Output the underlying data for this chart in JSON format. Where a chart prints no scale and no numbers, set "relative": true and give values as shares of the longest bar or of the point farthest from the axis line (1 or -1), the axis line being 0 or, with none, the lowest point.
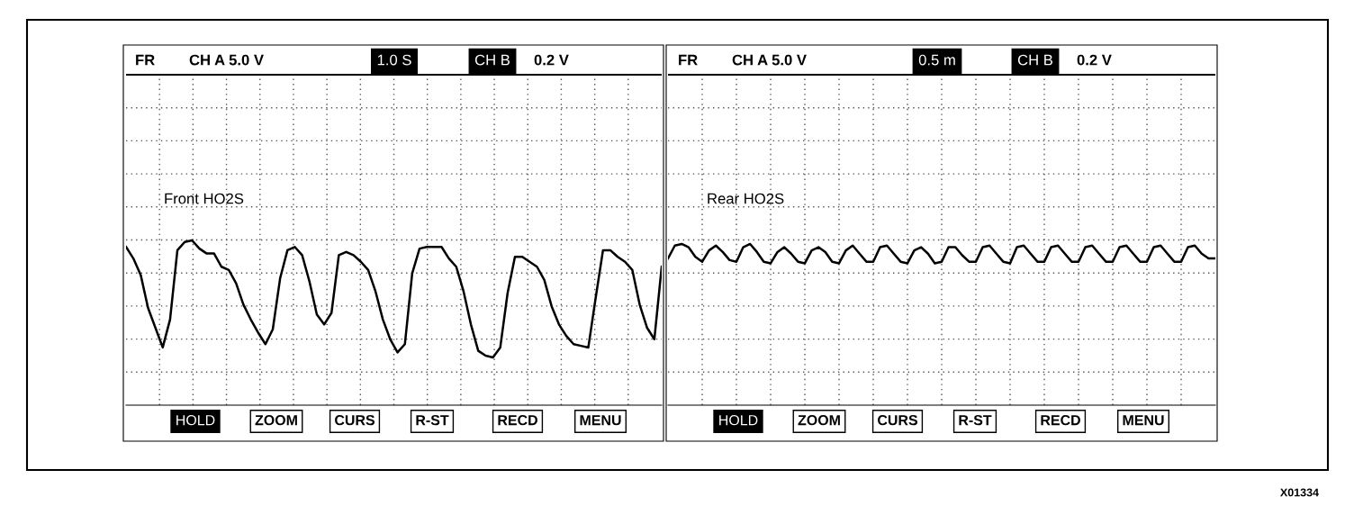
{
  "chart_data": [
    {
      "type": "line",
      "relative": true,
      "grid": true,
      "marker": "none",
      "line_style": "solid",
      "categories": [
        null,
        null,
        null,
        null,
        null,
        null,
        null,
        null,
        null,
        null,
        null,
        null,
        null,
        null,
        null,
        null,
        null,
        null,
        null,
        null,
        null,
        null,
        null,
        null,
        null,
        null,
        null,
        null,
        null,
        null,
        null,
        null,
        null,
        null,
        null,
        null,
        null,
        null,
        null,
        null,
        null,
        null,
        null,
        null,
        null,
        null,
        null,
        null,
        null,
        null,
        null,
        null,
        null,
        null,
        null,
        null,
        null,
        null,
        null,
        null,
        null,
        null,
        null,
        null,
        null,
        null,
        null,
        null,
        null,
        null,
        null,
        null,
        null,
        null
      ],
      "series": [
        {
          "color": "#000000",
          "values": [
            0.96,
            0.89,
            0.79,
            0.59,
            0.47,
            0.35,
            0.52,
            0.94,
            0.99,
            1.0,
            0.95,
            0.92,
            0.92,
            0.84,
            0.82,
            0.74,
            0.61,
            0.52,
            0.44,
            0.37,
            0.46,
            0.77,
            0.94,
            0.96,
            0.91,
            0.75,
            0.55,
            0.49,
            0.56,
            0.91,
            0.93,
            0.91,
            0.87,
            0.82,
            0.69,
            0.52,
            0.4,
            0.32,
            0.37,
            0.8,
            0.95,
            0.96,
            0.96,
            0.96,
            0.89,
            0.84,
            0.69,
            0.49,
            0.33,
            0.3,
            0.29,
            0.35,
            0.68,
            0.9,
            0.9,
            0.87,
            0.84,
            0.76,
            0.6,
            0.49,
            0.42,
            0.37,
            0.36,
            0.35,
            0.65,
            0.94,
            0.94,
            0.9,
            0.87,
            0.82,
            0.61,
            0.47,
            0.4,
            0.84
          ]
        }
      ],
      "annotations": [
        "FR",
        "CH A 5.0 V",
        "1.0 S",
        "CH B",
        "0.2 V",
        "Front HO2S",
        "HOLD",
        "ZOOM",
        "CURS",
        "R-ST",
        "RECD",
        "MENU"
      ]
    },
    {
      "type": "line",
      "relative": true,
      "grid": true,
      "marker": "none",
      "line_style": "solid",
      "categories": [
        null,
        null,
        null,
        null,
        null,
        null,
        null,
        null,
        null,
        null,
        null,
        null,
        null,
        null,
        null,
        null,
        null,
        null,
        null,
        null,
        null,
        null,
        null,
        null,
        null,
        null,
        null,
        null,
        null,
        null,
        null,
        null,
        null,
        null,
        null,
        null,
        null,
        null,
        null,
        null,
        null,
        null,
        null,
        null,
        null,
        null,
        null,
        null,
        null,
        null,
        null,
        null,
        null,
        null,
        null,
        null,
        null,
        null,
        null,
        null,
        null,
        null,
        null,
        null,
        null,
        null,
        null,
        null,
        null,
        null,
        null,
        null,
        null,
        null,
        null,
        null,
        null,
        null,
        null,
        null,
        null
      ],
      "series": [
        {
          "color": "#000000",
          "values": [
            0.91,
            0.99,
            1.0,
            0.98,
            0.92,
            0.89,
            0.96,
            0.99,
            0.95,
            0.9,
            0.89,
            0.98,
            1.0,
            0.95,
            0.89,
            0.88,
            0.95,
            0.98,
            0.94,
            0.89,
            0.88,
            0.96,
            0.98,
            0.95,
            0.89,
            0.88,
            0.96,
            0.99,
            0.94,
            0.89,
            0.89,
            0.98,
            0.99,
            0.94,
            0.89,
            0.88,
            0.96,
            0.98,
            0.94,
            0.88,
            0.89,
            0.98,
            0.98,
            0.93,
            0.89,
            0.89,
            0.98,
            0.99,
            0.94,
            0.89,
            0.88,
            0.98,
            0.99,
            0.94,
            0.89,
            0.89,
            0.98,
            0.99,
            0.94,
            0.89,
            0.89,
            0.98,
            0.99,
            0.94,
            0.89,
            0.89,
            0.98,
            0.99,
            0.94,
            0.89,
            0.89,
            0.98,
            0.99,
            0.94,
            0.89,
            0.89,
            0.98,
            0.99,
            0.94,
            0.91,
            0.91
          ]
        }
      ],
      "annotations": [
        "FR",
        "CH A 5.0 V",
        "0.5 m",
        "CH B",
        "0.2 V",
        "Rear HO2S",
        "HOLD",
        "ZOOM",
        "CURS",
        "R-ST",
        "RECD",
        "MENU",
        "X01334"
      ]
    }
  ]
}
